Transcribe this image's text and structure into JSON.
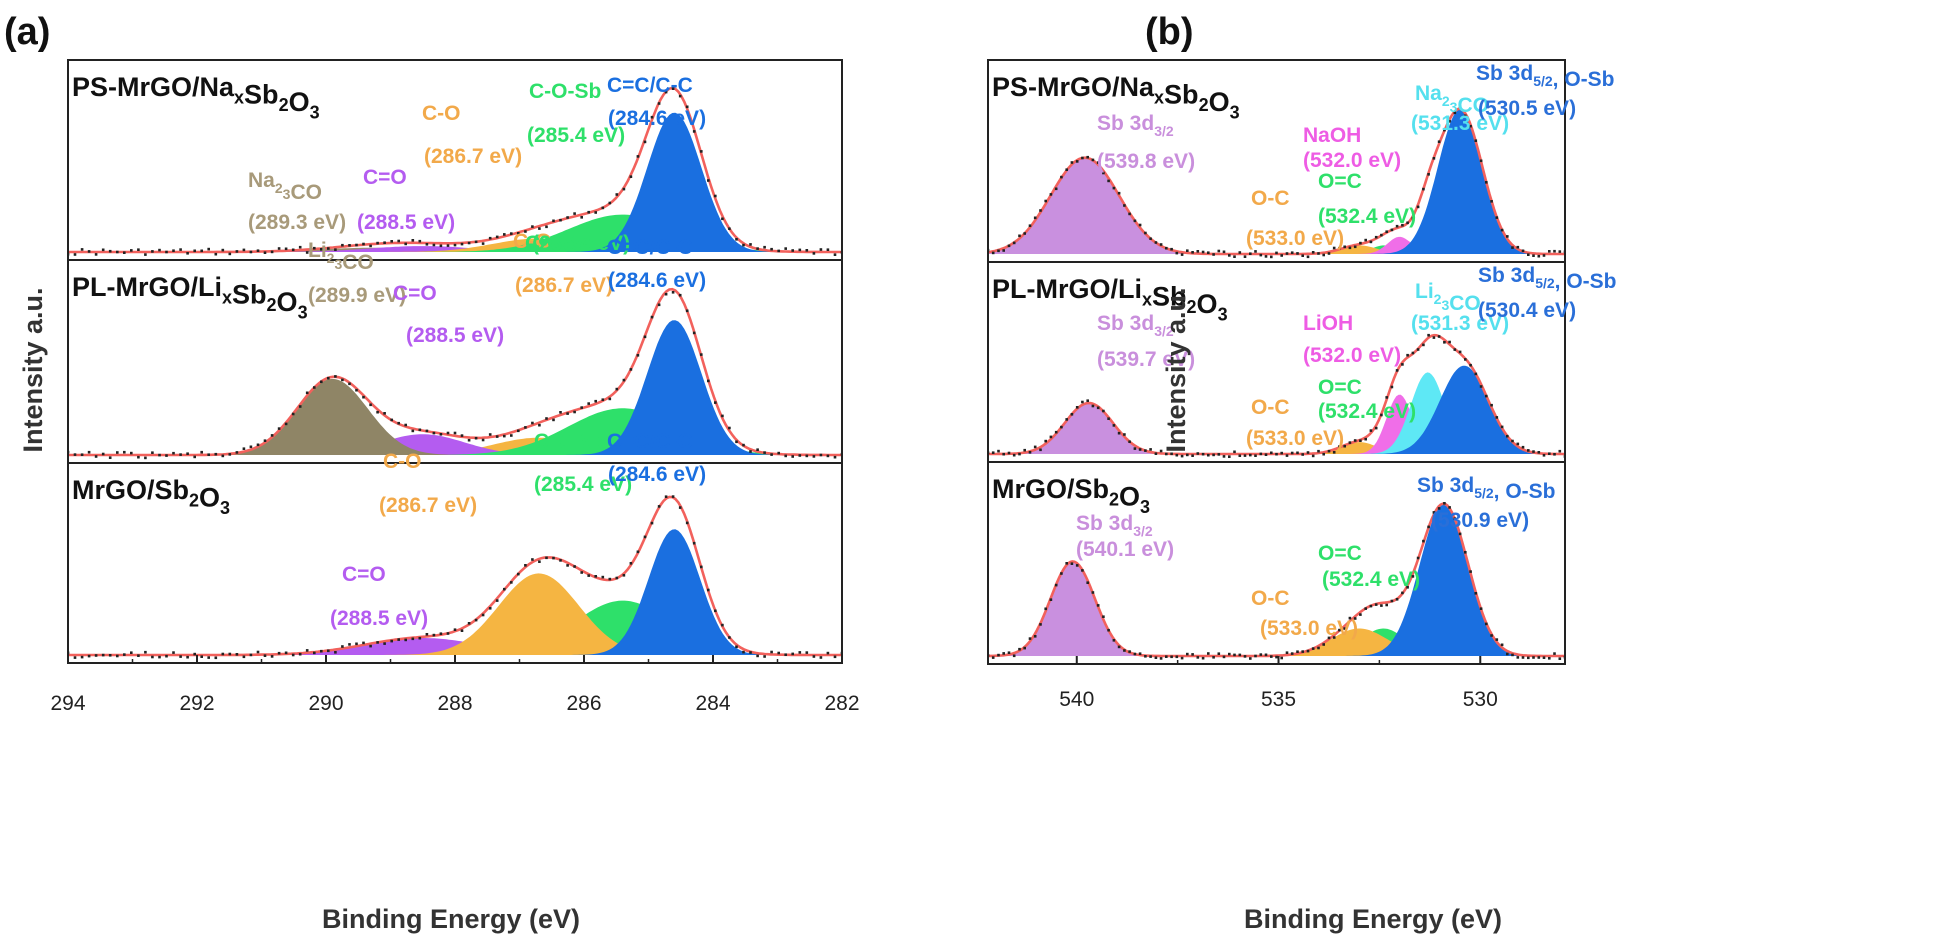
{
  "figure": {
    "colors": {
      "C=C/C-C": "#1a6fe0",
      "C-O-Sb": "#2ee06a",
      "C-O": "#f5b542",
      "C=O": "#b45cf0",
      "Na2CO3": "#9b8f70",
      "Li2CO3": "#8f8566",
      "Sb 3d3/2": "#c990df",
      "Sb 3d5/2, O-Sb": "#1a6fe0",
      "Na2CO3/Li2CO3 (O 1s)": "#5ee8f5",
      "NaOH/LiOH": "#f06ee8",
      "O=C": "#2ee06a",
      "O-C": "#f5b542",
      "envelope": "#f2615c",
      "data_points": "#222222",
      "label_Na2CO3": "#a89a7a",
      "label_CO3_O1s": "#55e0ee",
      "label_OH": "#ee5ce4",
      "label_Sb3d5": "#2a6fd8",
      "label_OC": "#f2a94a",
      "label_Sb3d3": "#c98fdc"
    }
  },
  "chart_data": [
    {
      "type": "area",
      "panel": "(a)",
      "xlabel": "Binding Energy (eV)",
      "ylabel": "Intensity a.u.",
      "xlim": [
        294,
        282
      ],
      "x_reversed": true,
      "xticks": [
        "294",
        "292",
        "290",
        "288",
        "286",
        "284",
        "282"
      ],
      "subpanels": [
        {
          "sample": {
            "pre": "PS-MrGO/Na",
            "sub": "x",
            "mid": "Sb",
            "sub2": "2",
            "post": "O",
            "sub3": "3"
          },
          "peaks": [
            {
              "name": "C=C/C-C",
              "center": 284.6,
              "amplitude": 0.82,
              "sigma": 0.42,
              "color_key": "C=C/C-C"
            },
            {
              "name": "C-O-Sb",
              "center": 285.4,
              "amplitude": 0.22,
              "sigma": 0.85,
              "color_key": "C-O-Sb"
            },
            {
              "name": "C-O",
              "center": 286.7,
              "amplitude": 0.08,
              "sigma": 0.7,
              "color_key": "C-O"
            },
            {
              "name": "C=O",
              "center": 288.5,
              "amplitude": 0.035,
              "sigma": 0.8,
              "color_key": "C=O"
            },
            {
              "name": "Na2CO3",
              "center": 289.3,
              "amplitude": 0.025,
              "sigma": 0.8,
              "color_key": "Na2CO3"
            }
          ],
          "labels": [
            {
              "line1": {
                "pre": "Na",
                "sub": "2",
                "post": "CO",
                "sub2": "3"
              },
              "line2": "(289.3 eV)",
              "color_key": "label_Na2CO3"
            },
            {
              "line1": {
                "pre": "C=O"
              },
              "line2": "(288.5 eV)",
              "color_key": "C=O"
            },
            {
              "line1": {
                "pre": "C-O"
              },
              "line2": "(286.7 eV)",
              "color_key": "label_OC"
            },
            {
              "line1": {
                "pre": "C-O-Sb"
              },
              "line2": "(285.4 eV)",
              "color_key": "C-O-Sb"
            },
            {
              "line1": {
                "pre": "C=C/C-C"
              },
              "line2": "(284.6 eV)",
              "color_key": "C=C/C-C"
            }
          ]
        },
        {
          "sample": {
            "pre": "PL-MrGO/Li",
            "sub": "x",
            "mid": "Sb",
            "sub2": "2",
            "post": "O",
            "sub3": "3"
          },
          "peaks": [
            {
              "name": "C=C/C-C",
              "center": 284.6,
              "amplitude": 0.78,
              "sigma": 0.42,
              "color_key": "C=C/C-C"
            },
            {
              "name": "C-O-Sb",
              "center": 285.4,
              "amplitude": 0.27,
              "sigma": 0.85,
              "color_key": "C-O-Sb"
            },
            {
              "name": "C-O",
              "center": 286.7,
              "amplitude": 0.1,
              "sigma": 0.7,
              "color_key": "C-O"
            },
            {
              "name": "C=O",
              "center": 288.5,
              "amplitude": 0.12,
              "sigma": 0.65,
              "color_key": "C=O"
            },
            {
              "name": "Li2CO3",
              "center": 289.9,
              "amplitude": 0.44,
              "sigma": 0.55,
              "color_key": "Li2CO3"
            }
          ],
          "labels": [
            {
              "line1": {
                "pre": "Li",
                "sub": "2",
                "post": "CO",
                "sub2": "3"
              },
              "line2": "(289.9 eV)",
              "color_key": "label_Na2CO3"
            },
            {
              "line1": {
                "pre": "C=O"
              },
              "line2": "(288.5 eV)",
              "color_key": "C=O"
            },
            {
              "line1": {
                "pre": "C-O"
              },
              "line2": "(286.7 eV)",
              "color_key": "label_OC"
            },
            {
              "line1": {
                "pre": "C-O-Sb"
              },
              "line2": "(285.4 eV)",
              "color_key": "C-O-Sb"
            },
            {
              "line1": {
                "pre": "C=C/C-C"
              },
              "line2": "(284.6 eV)",
              "color_key": "C=C/C-C"
            }
          ]
        },
        {
          "sample": {
            "pre": "MrGO/Sb",
            "sub": "",
            "mid": "",
            "sub2": "2",
            "post": "O",
            "sub3": "3"
          },
          "peaks": [
            {
              "name": "C=C/C-C",
              "center": 284.6,
              "amplitude": 0.74,
              "sigma": 0.4,
              "color_key": "C=C/C-C"
            },
            {
              "name": "C-O-Sb",
              "center": 285.4,
              "amplitude": 0.32,
              "sigma": 0.75,
              "color_key": "C-O-Sb"
            },
            {
              "name": "C-O",
              "center": 286.7,
              "amplitude": 0.48,
              "sigma": 0.62,
              "color_key": "C-O"
            },
            {
              "name": "C=O",
              "center": 288.5,
              "amplitude": 0.1,
              "sigma": 0.9,
              "color_key": "C=O"
            }
          ],
          "labels": [
            {
              "line1": {
                "pre": "C=O"
              },
              "line2": "(288.5 eV)",
              "color_key": "C=O"
            },
            {
              "line1": {
                "pre": "C-O"
              },
              "line2": "(286.7 eV)",
              "color_key": "label_OC"
            },
            {
              "line1": {
                "pre": "C-O-Sb"
              },
              "line2": "(285.4 eV)",
              "color_key": "C-O-Sb"
            },
            {
              "line1": {
                "pre": "C=C/C-C"
              },
              "line2": "(284.6 eV)",
              "color_key": "C=C/C-C"
            }
          ]
        }
      ]
    },
    {
      "type": "area",
      "panel": "(b)",
      "xlabel": "Binding Energy (eV)",
      "ylabel": "Intensity a.u.",
      "xlim": [
        542.2,
        527.9
      ],
      "x_reversed": true,
      "xticks": [
        "540",
        "535",
        "530"
      ],
      "xtick_values": [
        540,
        535,
        530
      ],
      "subpanels": [
        {
          "sample": {
            "pre": "PS-MrGO/Na",
            "sub": "x",
            "mid": "Sb",
            "sub2": "2",
            "post": "O",
            "sub3": "3"
          },
          "peaks": [
            {
              "name": "Sb 3d3/2",
              "center": 539.8,
              "amplitude": 0.56,
              "sigma": 0.85,
              "color_key": "Sb 3d3/2"
            },
            {
              "name": "Sb 3d5/2, O-Sb",
              "center": 530.5,
              "amplitude": 0.84,
              "sigma": 0.55,
              "color_key": "Sb 3d5/2, O-Sb"
            },
            {
              "name": "Na2CO3",
              "center": 531.3,
              "amplitude": 0.16,
              "sigma": 0.3,
              "color_key": "Na2CO3/Li2CO3 (O 1s)"
            },
            {
              "name": "NaOH",
              "center": 532.0,
              "amplitude": 0.1,
              "sigma": 0.3,
              "color_key": "NaOH/LiOH"
            },
            {
              "name": "O=C",
              "center": 532.4,
              "amplitude": 0.05,
              "sigma": 0.3,
              "color_key": "O=C"
            },
            {
              "name": "O-C",
              "center": 533.0,
              "amplitude": 0.05,
              "sigma": 0.45,
              "color_key": "O-C"
            }
          ],
          "labels": [
            {
              "line1": {
                "pre": "Sb 3d",
                "sub": "3/2"
              },
              "line2": "(539.8 eV)",
              "color_key": "label_Sb3d3"
            },
            {
              "line1": {
                "pre": "O-C"
              },
              "line2": "(533.0 eV)",
              "color_key": "label_OC"
            },
            {
              "line1": {
                "pre": "O=C"
              },
              "line2": "(532.4 eV)",
              "color_key": "O=C"
            },
            {
              "line1": {
                "pre": "NaOH"
              },
              "line2": "(532.0 eV)",
              "color_key": "label_OH"
            },
            {
              "line1": {
                "pre": "Na",
                "sub": "2",
                "post": "CO",
                "sub2": "3"
              },
              "line2": "(531.3 eV)",
              "color_key": "label_CO3_O1s"
            },
            {
              "line1": {
                "pre": "Sb 3d",
                "sub": "5/2",
                "post": ", O-Sb"
              },
              "line2": "(530.5 eV)",
              "color_key": "label_Sb3d5"
            }
          ]
        },
        {
          "sample": {
            "pre": "PL-MrGO/Li",
            "sub": "x",
            "mid": "Sb",
            "sub2": "2",
            "post": "O",
            "sub3": "3"
          },
          "peaks": [
            {
              "name": "Sb 3d3/2",
              "center": 539.7,
              "amplitude": 0.3,
              "sigma": 0.6,
              "color_key": "Sb 3d3/2"
            },
            {
              "name": "Sb 3d5/2, O-Sb",
              "center": 530.4,
              "amplitude": 0.52,
              "sigma": 0.6,
              "color_key": "Sb 3d5/2, O-Sb"
            },
            {
              "name": "Li2CO3",
              "center": 531.3,
              "amplitude": 0.48,
              "sigma": 0.42,
              "color_key": "Na2CO3/Li2CO3 (O 1s)"
            },
            {
              "name": "LiOH",
              "center": 532.0,
              "amplitude": 0.35,
              "sigma": 0.32,
              "color_key": "NaOH/LiOH"
            },
            {
              "name": "O=C",
              "center": 532.4,
              "amplitude": 0.06,
              "sigma": 0.3,
              "color_key": "O=C"
            },
            {
              "name": "O-C",
              "center": 533.0,
              "amplitude": 0.07,
              "sigma": 0.45,
              "color_key": "O-C"
            }
          ],
          "labels": [
            {
              "line1": {
                "pre": "Sb 3d",
                "sub": "3/2"
              },
              "line2": "(539.7 eV)",
              "color_key": "label_Sb3d3"
            },
            {
              "line1": {
                "pre": "O-C"
              },
              "line2": "(533.0 eV)",
              "color_key": "label_OC"
            },
            {
              "line1": {
                "pre": "O=C"
              },
              "line2": "(532.4 eV)",
              "color_key": "O=C"
            },
            {
              "line1": {
                "pre": "LiOH"
              },
              "line2": "(532.0 eV)",
              "color_key": "label_OH"
            },
            {
              "line1": {
                "pre": "Li",
                "sub": "2",
                "post": "CO",
                "sub2": "3"
              },
              "line2": "(531.3 eV)",
              "color_key": "label_CO3_O1s"
            },
            {
              "line1": {
                "pre": "Sb 3d",
                "sub": "5/2",
                "post": ", O-Sb"
              },
              "line2": "(530.4 eV)",
              "color_key": "label_Sb3d5"
            }
          ]
        },
        {
          "sample": {
            "pre": "MrGO/Sb",
            "sub": "",
            "mid": "",
            "sub2": "2",
            "post": "O",
            "sub3": "3"
          },
          "peaks": [
            {
              "name": "Sb 3d3/2",
              "center": 540.1,
              "amplitude": 0.55,
              "sigma": 0.55,
              "color_key": "Sb 3d3/2"
            },
            {
              "name": "Sb 3d5/2, O-Sb",
              "center": 530.9,
              "amplitude": 0.88,
              "sigma": 0.6,
              "color_key": "Sb 3d5/2, O-Sb"
            },
            {
              "name": "O=C",
              "center": 532.4,
              "amplitude": 0.16,
              "sigma": 0.55,
              "color_key": "O=C"
            },
            {
              "name": "O-C",
              "center": 533.0,
              "amplitude": 0.16,
              "sigma": 0.7,
              "color_key": "O-C"
            }
          ],
          "labels": [
            {
              "line1": {
                "pre": "Sb 3d",
                "sub": "3/2"
              },
              "line2": "(540.1 eV)",
              "color_key": "label_Sb3d3"
            },
            {
              "line1": {
                "pre": "O-C"
              },
              "line2": "(533.0 eV)",
              "color_key": "label_OC"
            },
            {
              "line1": {
                "pre": "O=C"
              },
              "line2": "(532.4 eV)",
              "color_key": "O=C"
            },
            {
              "line1": {
                "pre": "Sb 3d",
                "sub": "5/2",
                "post": ", O-Sb"
              },
              "line2": "(530.9 eV)",
              "color_key": "label_Sb3d5"
            }
          ]
        }
      ]
    }
  ]
}
